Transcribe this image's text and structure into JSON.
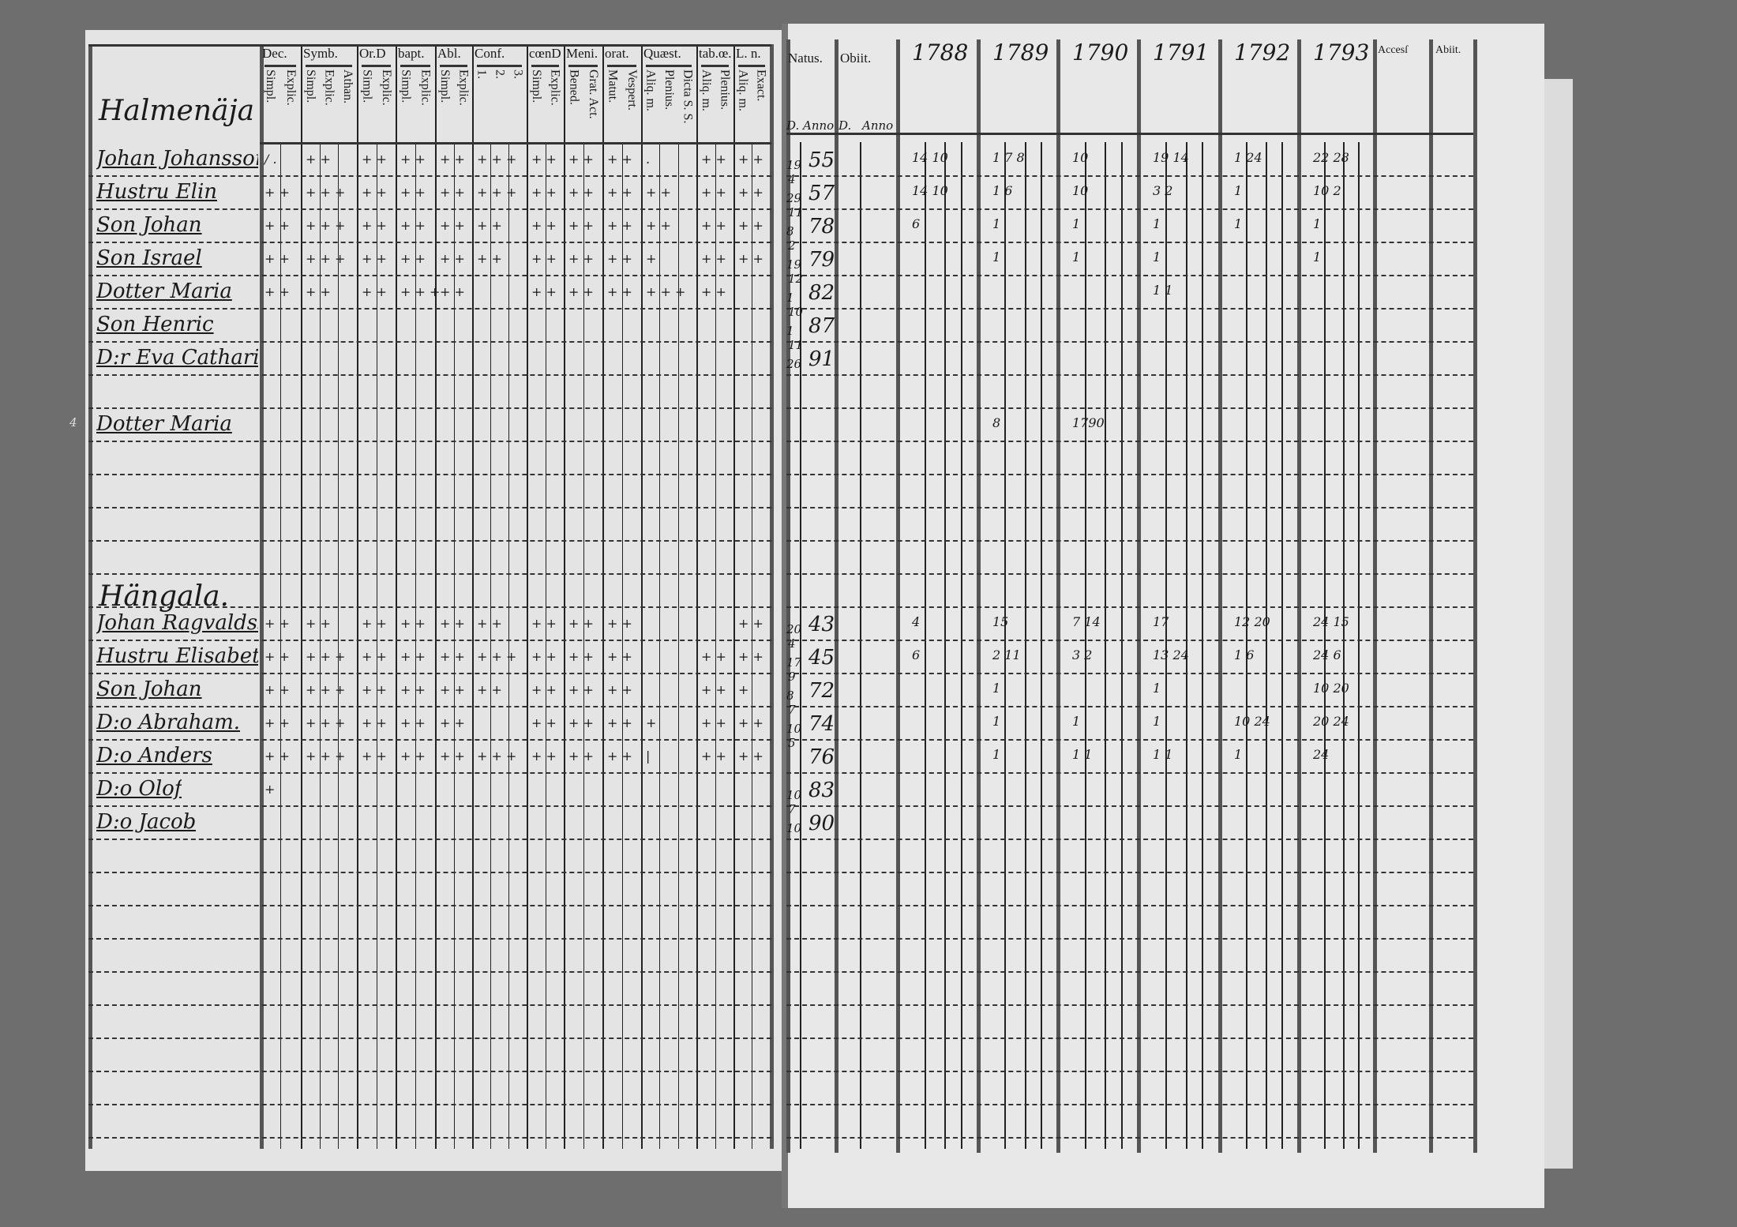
{
  "left_header": {
    "columns": [
      {
        "label": "Dec.",
        "subs": [
          "Simpl.",
          "Explic."
        ]
      },
      {
        "label": "Symb.",
        "subs": [
          "Simpl.",
          "Explic.",
          "Athan."
        ]
      },
      {
        "label": "Or.D",
        "subs": [
          "Simpl.",
          "Explic."
        ]
      },
      {
        "label": "bapt.",
        "subs": [
          "Simpl.",
          "Explic."
        ]
      },
      {
        "label": "Abl.",
        "subs": [
          "Simpl.",
          "Explic."
        ]
      },
      {
        "label": "Conf.",
        "subs": [
          "1.",
          "2.",
          "3."
        ]
      },
      {
        "label": "cœnD",
        "subs": [
          "Simpl.",
          "Explic."
        ]
      },
      {
        "label": "Meni.",
        "subs": [
          "Bened.",
          "Grat. Act."
        ]
      },
      {
        "label": "orat.",
        "subs": [
          "Matut.",
          "Vespert."
        ]
      },
      {
        "label": "Quæst.",
        "subs": [
          "Aliq. m.",
          "Plenius.",
          "Dicta S. S."
        ]
      },
      {
        "label": "tab.œ.",
        "subs": [
          "Aliq. m.",
          "Plenius."
        ]
      },
      {
        "label": "L. n.",
        "subs": [
          "Aliq. m.",
          "Exact."
        ]
      }
    ]
  },
  "right_header": {
    "natus": "Natus.",
    "obiit": "Obiit.",
    "d": "D.",
    "anno": "Anno",
    "years": [
      "1788",
      "1789",
      "1790",
      "1791",
      "1792",
      "1793"
    ],
    "accessit": "Accesſ",
    "abiit": "Abiit."
  },
  "sections": [
    {
      "title": "Halmenäja",
      "persons": [
        {
          "name": "Johan Johansson",
          "month": "",
          "day": "19",
          "year": "55",
          "marks": [
            "/ .",
            "+ +",
            "+ +",
            "+ +",
            "+ +",
            "+ + +",
            "+ +",
            "+ +",
            "+ +",
            ".",
            "+ +",
            "+ +"
          ],
          "notes": [
            "14 10",
            "1 7 8",
            "10",
            "19 14",
            "1 24",
            "22 28"
          ]
        },
        {
          "name": "Hustru Elin",
          "month": "4",
          "day": "29",
          "year": "57",
          "marks": [
            "+ +",
            "+ + +",
            "+ +",
            "+ +",
            "+ +",
            "+ + +",
            "+ +",
            "+ +",
            "+ +",
            "+ +",
            "+ +",
            "+ +"
          ],
          "notes": [
            "14 10",
            "1 6",
            "10",
            "3 2",
            "1",
            "10 2"
          ]
        },
        {
          "name": "Son Johan",
          "month": "11",
          "day": "8",
          "year": "78",
          "marks": [
            "+ +",
            "+ + +",
            "+ +",
            "+ +",
            "+ +",
            "+ +",
            "+ +",
            "+ +",
            "+ +",
            "+ +",
            "+ +",
            "+ +"
          ],
          "notes": [
            "6",
            "1",
            "1",
            "1",
            "1",
            "1"
          ]
        },
        {
          "name": "Son Israel",
          "month": "2",
          "day": "19",
          "year": "79",
          "marks": [
            "+ +",
            "+ + +",
            "+ +",
            "+ +",
            "+ +",
            "+ +",
            "+ +",
            "+ +",
            "+ +",
            "+",
            "+ +",
            "+ +"
          ],
          "notes": [
            "",
            "1",
            "1",
            "1",
            "",
            "1"
          ]
        },
        {
          "name": "Dotter Maria",
          "month": "12",
          "day": "1",
          "year": "82",
          "marks": [
            "+ +",
            "+ +",
            "+ +",
            "+ + +",
            "+ +",
            "",
            "+ +",
            "+ +",
            "+ +",
            "+ + +",
            "+ +",
            ""
          ],
          "notes": [
            "",
            "",
            "",
            "1 1",
            "",
            ""
          ]
        },
        {
          "name": "Son Henric",
          "month": "10",
          "day": "1",
          "year": "87",
          "marks": [],
          "notes": []
        },
        {
          "name": "D:r Eva Catharina",
          "month": "11",
          "day": "26",
          "year": "91",
          "marks": [],
          "notes": []
        },
        {
          "name": "Dotter Maria",
          "month": "",
          "day": "",
          "year": "",
          "marks": [],
          "notes": [
            "",
            "8",
            "1790",
            "",
            "",
            ""
          ]
        }
      ]
    },
    {
      "title": "Hängala.",
      "persons": [
        {
          "name": "Johan Ragvaldsson",
          "month": "",
          "day": "20",
          "year": "43",
          "marks": [
            "+ +",
            "+ +",
            "+ +",
            "+ +",
            "+ +",
            "+ +",
            "+ +",
            "+ +",
            "+ +",
            "",
            "",
            "+ +"
          ],
          "notes": [
            "4",
            "15",
            "7 14",
            "17",
            "12 20",
            "24 15"
          ]
        },
        {
          "name": "Hustru Elisabeth",
          "month": "4",
          "day": "17",
          "year": "45",
          "marks": [
            "+ +",
            "+ + +",
            "+ +",
            "+ +",
            "+ +",
            "+ + +",
            "+ +",
            "+ +",
            "+ +",
            "",
            "+ +",
            "+ +"
          ],
          "notes": [
            "6",
            "2 11",
            "3 2",
            "13 24",
            "1 6",
            "24 6"
          ]
        },
        {
          "name": "Son Johan",
          "month": "9",
          "day": "8",
          "year": "72",
          "marks": [
            "+ +",
            "+ + +",
            "+ +",
            "+ +",
            "+ +",
            "+ +",
            "+ +",
            "+ +",
            "+ +",
            "",
            "+ +",
            "+"
          ],
          "notes": [
            "",
            "1",
            "",
            "1",
            "",
            "10 20"
          ]
        },
        {
          "name": "D:o Abraham.",
          "month": "7",
          "day": "10",
          "year": "74",
          "marks": [
            "+ +",
            "+ + +",
            "+ +",
            "+ +",
            "+ +",
            "",
            "+ +",
            "+ +",
            "+ +",
            "+",
            "+ +",
            "+ +"
          ],
          "notes": [
            "",
            "1",
            "1",
            "1",
            "10 24",
            "20 24"
          ]
        },
        {
          "name": "D:o Anders",
          "month": "5",
          "day": "",
          "year": "76",
          "marks": [
            "+ +",
            "+ + +",
            "+ +",
            "+ +",
            "+ +",
            "+ + +",
            "+ +",
            "+ +",
            "+ +",
            "|",
            "+ +",
            "+ +"
          ],
          "notes": [
            "",
            "1",
            "1 1",
            "1 1",
            "1",
            "24"
          ]
        },
        {
          "name": "D:o Olof",
          "month": "",
          "day": "10",
          "year": "83",
          "marks": [
            "+"
          ],
          "notes": []
        },
        {
          "name": "D:o Jacob",
          "month": "7",
          "day": "10",
          "year": "90",
          "marks": [],
          "notes": []
        }
      ]
    }
  ],
  "margin_note": "4",
  "colors": {
    "paper": "#e4e4e4",
    "background": "#6e6e6e",
    "ink": "#1a1a1a"
  }
}
